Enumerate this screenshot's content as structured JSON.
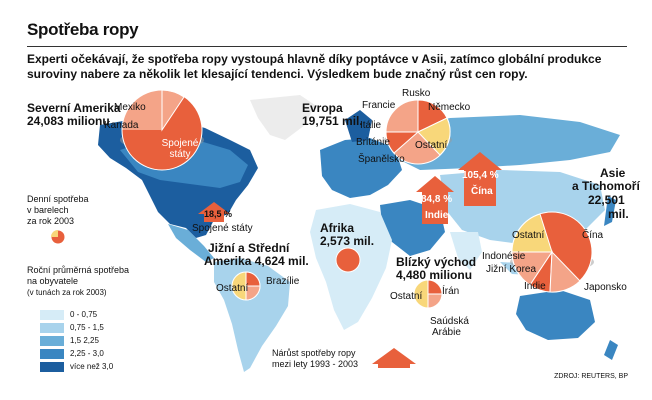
{
  "title": "Spotřeba ropy",
  "intro": "Experti očekávají, že spotřeba ropy vystoupá hlavně díky poptávce v Asii, zatímco globální produkce suroviny nabere za několik let klesající tendenci. Výsledkem bude značný růst cen ropy.",
  "regions": {
    "north_america": {
      "name": "Severní Amerika",
      "value": "24,083 milionu",
      "parts": [
        "Mexiko",
        "Kanada",
        "Spojené státy"
      ]
    },
    "europe": {
      "name": "Evropa",
      "value": "19,751 mil.",
      "parts": [
        "Rusko",
        "Francie",
        "Německo",
        "Itálie",
        "Británie",
        "Ostatní",
        "Španělsko"
      ]
    },
    "asia": {
      "name": "Asie a Tichomoří",
      "name_line1": "Asie",
      "name_line2": "a Tichomoří",
      "value": "22,501 mil.",
      "value_line1": "22,501",
      "value_line2": "mil.",
      "parts": [
        "Ostatní",
        "Čína",
        "Indonésie",
        "Jižní Korea",
        "Indie",
        "Japonsko"
      ]
    },
    "africa": {
      "name": "Afrika",
      "value": "2,573 mil."
    },
    "south_america": {
      "name": "Jižní a Střední Amerika",
      "name_line1": "Jižní a Střední",
      "name_line2": "Amerika 4,624 mil.",
      "parts": [
        "Ostatní",
        "Brazílie"
      ]
    },
    "middle_east": {
      "name": "Blízký východ",
      "value": "4,480 milionu",
      "parts": [
        "Ostatní",
        "Írán",
        "Saúdská",
        "Arábie"
      ]
    }
  },
  "growth_arrows": [
    {
      "pct": "18,5 %",
      "country": "Spojené státy"
    },
    {
      "pct": "84,8 %",
      "country": "Indie"
    },
    {
      "pct": "105,4 %",
      "country": "Čína"
    }
  ],
  "legend": {
    "pie_caption": [
      "Denní spotřeba",
      "v barelech",
      "za rok 2003"
    ],
    "scale_caption": [
      "Roční průměrná spotřeba",
      "na obyvatele"
    ],
    "scale_note": "(v tunách za rok 2003)",
    "classes": [
      {
        "label": "0 - 0,75",
        "color": "#d6ecf7"
      },
      {
        "label": "0,75 - 1,5",
        "color": "#a8d3ec"
      },
      {
        "label": "1,5   2,25",
        "color": "#6aaed8"
      },
      {
        "label": "2,25 - 3,0",
        "color": "#3a86c1"
      },
      {
        "label": "více než 3,0",
        "color": "#1c5e9f"
      }
    ],
    "growth_caption": [
      "Nárůst spotřeby ropy",
      "mezi lety 1993 - 2003"
    ]
  },
  "source": "ZDROJ: REUTERS, BP",
  "colors": {
    "pie_red": "#e8603c",
    "pie_salmon": "#f4a488",
    "pie_yellow": "#f8d77a",
    "arrow": "#e8603c",
    "land_grey": "#d9d9d9"
  }
}
